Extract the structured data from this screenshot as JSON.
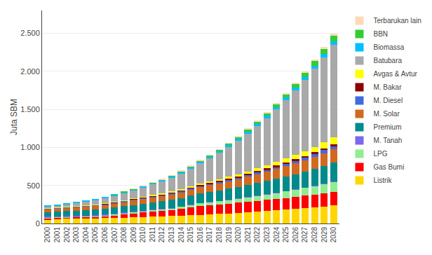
{
  "chart_data": {
    "type": "bar",
    "stacked": true,
    "ylabel": "Juta SBM",
    "categories": [
      "2000",
      "2001",
      "2002",
      "2003",
      "2004",
      "2005",
      "2006",
      "2007",
      "2008",
      "2009",
      "2010",
      "2011",
      "2012",
      "2013",
      "2014",
      "2015",
      "2016",
      "2017",
      "2018",
      "2019",
      "2020",
      "2021",
      "2022",
      "2023",
      "2024",
      "2025",
      "2026",
      "2027",
      "2028",
      "2029",
      "2030"
    ],
    "series": [
      {
        "name": "Listrik",
        "color": "#FFD700",
        "values": [
          55,
          58,
          60,
          62,
          65,
          68,
          71,
          74,
          77,
          80,
          84,
          88,
          92,
          97,
          102,
          107,
          113,
          119,
          125,
          132,
          139,
          147,
          155,
          163,
          172,
          181,
          191,
          201,
          212,
          223,
          235
        ]
      },
      {
        "name": "Gas Bumi",
        "color": "#FF0000",
        "values": [
          18,
          20,
          21,
          22,
          23,
          24,
          28,
          35,
          45,
          55,
          62,
          68,
          72,
          78,
          90,
          105,
          118,
          122,
          126,
          130,
          134,
          138,
          142,
          146,
          150,
          154,
          158,
          163,
          167,
          172,
          177
        ]
      },
      {
        "name": "LPG",
        "color": "#90EE90",
        "values": [
          4,
          5,
          6,
          7,
          8,
          9,
          11,
          13,
          15,
          17,
          19,
          21,
          24,
          27,
          30,
          33,
          37,
          41,
          45,
          50,
          55,
          61,
          67,
          74,
          81,
          89,
          97,
          106,
          116,
          127,
          139
        ]
      },
      {
        "name": "M. Tanah",
        "color": "#7B68EE",
        "values": [
          12,
          11,
          10,
          10,
          9,
          9,
          8,
          7,
          6,
          5,
          4,
          4,
          3,
          3,
          3,
          2,
          2,
          2,
          2,
          1,
          1,
          1,
          1,
          1,
          1,
          1,
          1,
          1,
          1,
          1,
          1
        ]
      },
      {
        "name": "Premium",
        "color": "#008B8B",
        "values": [
          60,
          62,
          65,
          67,
          70,
          73,
          76,
          80,
          83,
          87,
          91,
          96,
          101,
          106,
          111,
          117,
          123,
          129,
          136,
          143,
          150,
          158,
          166,
          175,
          183,
          193,
          202,
          213,
          224,
          235,
          247
        ]
      },
      {
        "name": "M. Solar",
        "color": "#D2691E",
        "values": [
          40,
          42,
          44,
          46,
          48,
          50,
          52,
          55,
          57,
          60,
          63,
          66,
          70,
          73,
          77,
          81,
          85,
          90,
          94,
          99,
          104,
          110,
          116,
          122,
          128,
          135,
          142,
          149,
          157,
          165,
          174
        ]
      },
      {
        "name": "M. Diesel",
        "color": "#4169E1",
        "values": [
          8,
          8,
          9,
          9,
          10,
          10,
          11,
          11,
          12,
          13,
          13,
          14,
          15,
          16,
          17,
          18,
          19,
          20,
          21,
          22,
          24,
          25,
          27,
          28,
          30,
          32,
          34,
          36,
          38,
          40,
          42
        ]
      },
      {
        "name": "M. Bakar",
        "color": "#8B0000",
        "values": [
          4,
          4,
          4,
          5,
          5,
          5,
          6,
          6,
          6,
          7,
          7,
          8,
          8,
          9,
          9,
          10,
          10,
          11,
          11,
          12,
          13,
          13,
          14,
          15,
          16,
          17,
          18,
          19,
          20,
          21,
          22
        ]
      },
      {
        "name": "Avgas & Avtur",
        "color": "#FFFF00",
        "values": [
          3,
          3,
          4,
          4,
          4,
          5,
          5,
          6,
          6,
          7,
          8,
          9,
          10,
          11,
          13,
          15,
          17,
          19,
          22,
          25,
          28,
          32,
          36,
          41,
          46,
          52,
          58,
          65,
          73,
          82,
          92
        ]
      },
      {
        "name": "Batubara",
        "color": "#A9A9A9",
        "values": [
          20,
          25,
          30,
          38,
          47,
          57,
          66,
          80,
          94,
          107,
          125,
          143,
          162,
          184,
          210,
          237,
          269,
          305,
          346,
          391,
          441,
          496,
          556,
          621,
          691,
          767,
          847,
          933,
          1023,
          1118,
          1218
        ]
      },
      {
        "name": "Biomassa",
        "color": "#00BFFF",
        "values": [
          8,
          8,
          9,
          9,
          10,
          10,
          11,
          11,
          12,
          13,
          13,
          14,
          15,
          16,
          17,
          18,
          19,
          20,
          22,
          23,
          25,
          26,
          28,
          30,
          32,
          34,
          36,
          38,
          41,
          43,
          46
        ]
      },
      {
        "name": "BBN",
        "color": "#32CD32",
        "values": [
          0,
          0,
          0,
          0,
          0,
          0,
          0,
          1,
          2,
          3,
          4,
          5,
          7,
          8,
          10,
          12,
          14,
          16,
          19,
          22,
          25,
          28,
          32,
          36,
          40,
          45,
          50,
          56,
          62,
          69,
          76
        ]
      },
      {
        "name": "Terbarukan lain",
        "color": "#FFDAB9",
        "values": [
          0,
          0,
          0,
          0,
          0,
          0,
          0,
          0,
          0,
          1,
          1,
          1,
          2,
          2,
          3,
          3,
          4,
          5,
          6,
          7,
          8,
          9,
          11,
          12,
          14,
          16,
          18,
          21,
          23,
          26,
          30
        ]
      }
    ],
    "ylim": [
      0,
      2800
    ],
    "yticks": [
      0,
      500,
      {
        "value": 1000,
        "label": "1.000"
      },
      {
        "value": 1500,
        "label": "1.500"
      },
      {
        "value": 2000,
        "label": "2.000"
      },
      {
        "value": 2500,
        "label": "2.500"
      }
    ],
    "grid": true,
    "legend": "right"
  }
}
